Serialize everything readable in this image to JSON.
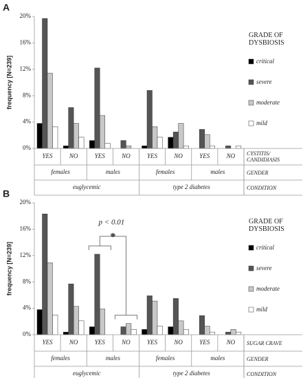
{
  "chart_data": [
    {
      "type": "bar",
      "panel": "A",
      "ylabel": "frequency [N=239]",
      "legend_title": "GRADE OF DYSBIOSIS",
      "categories": [
        "YES",
        "NO",
        "YES",
        "NO",
        "YES",
        "NO",
        "YES",
        "NO"
      ],
      "gender": [
        "females",
        "males",
        "females",
        "males"
      ],
      "condition": [
        "euglycemic",
        "type 2 diabetes"
      ],
      "row_labels": [
        "CYSTITIS/ CANDIDIASIS",
        "GENDER",
        "CONDITION"
      ],
      "ylim": [
        0,
        20
      ],
      "yticks": [
        {
          "value": 0,
          "label": "0%"
        },
        {
          "value": 4,
          "label": "4%"
        },
        {
          "value": 8,
          "label": "8%"
        },
        {
          "value": 12,
          "label": "12%"
        },
        {
          "value": 16,
          "label": "16%"
        },
        {
          "value": 20,
          "label": "20%"
        }
      ],
      "series": [
        {
          "name": "critical",
          "color": "#000000",
          "values": [
            3.8,
            0.4,
            1.2,
            0,
            0.4,
            1.7,
            0,
            0
          ]
        },
        {
          "name": "severe",
          "color": "#555555",
          "values": [
            19.7,
            6.2,
            12.2,
            1.2,
            8.8,
            2.5,
            2.9,
            0.4
          ]
        },
        {
          "name": "moderate",
          "color": "#c8c8c8",
          "values": [
            11.4,
            3.8,
            5.0,
            0.4,
            3.3,
            3.8,
            2.1,
            0
          ]
        },
        {
          "name": "mild",
          "color": "#ffffff",
          "values": [
            3.3,
            1.7,
            0.8,
            0,
            1.7,
            0.4,
            0.4,
            0.4
          ]
        }
      ]
    },
    {
      "type": "bar",
      "panel": "B",
      "ylabel": "frequency [N=239]",
      "legend_title": "GRADE OF DYSBIOSIS",
      "categories": [
        "YES",
        "NO",
        "YES",
        "NO",
        "YES",
        "NO",
        "YES",
        "NO"
      ],
      "gender": [
        "females",
        "males",
        "females",
        "males"
      ],
      "condition": [
        "euglycemic",
        "type 2 diabetes"
      ],
      "row_labels": [
        "SUGAR CRAVE",
        "GENDER",
        "CONDITION"
      ],
      "ylim": [
        0,
        20
      ],
      "yticks": [
        {
          "value": 0,
          "label": "0%"
        },
        {
          "value": 4,
          "label": "4%"
        },
        {
          "value": 8,
          "label": "8%"
        },
        {
          "value": 12,
          "label": "12%"
        },
        {
          "value": 16,
          "label": "16%"
        },
        {
          "value": 20,
          "label": "20%"
        }
      ],
      "annotation": {
        "text": "p < 0.01",
        "symbol": "*"
      },
      "series": [
        {
          "name": "critical",
          "color": "#000000",
          "values": [
            3.8,
            0.4,
            1.2,
            0,
            0.8,
            1.2,
            0,
            0
          ]
        },
        {
          "name": "severe",
          "color": "#555555",
          "values": [
            18.3,
            7.7,
            12.2,
            1.2,
            5.9,
            5.5,
            2.9,
            0.4
          ]
        },
        {
          "name": "moderate",
          "color": "#c8c8c8",
          "values": [
            10.9,
            4.3,
            3.9,
            1.7,
            5.1,
            2.1,
            1.3,
            0.8
          ]
        },
        {
          "name": "mild",
          "color": "#ffffff",
          "values": [
            3.0,
            2.1,
            0,
            0.8,
            1.3,
            0.8,
            0.4,
            0.4
          ]
        }
      ]
    }
  ]
}
